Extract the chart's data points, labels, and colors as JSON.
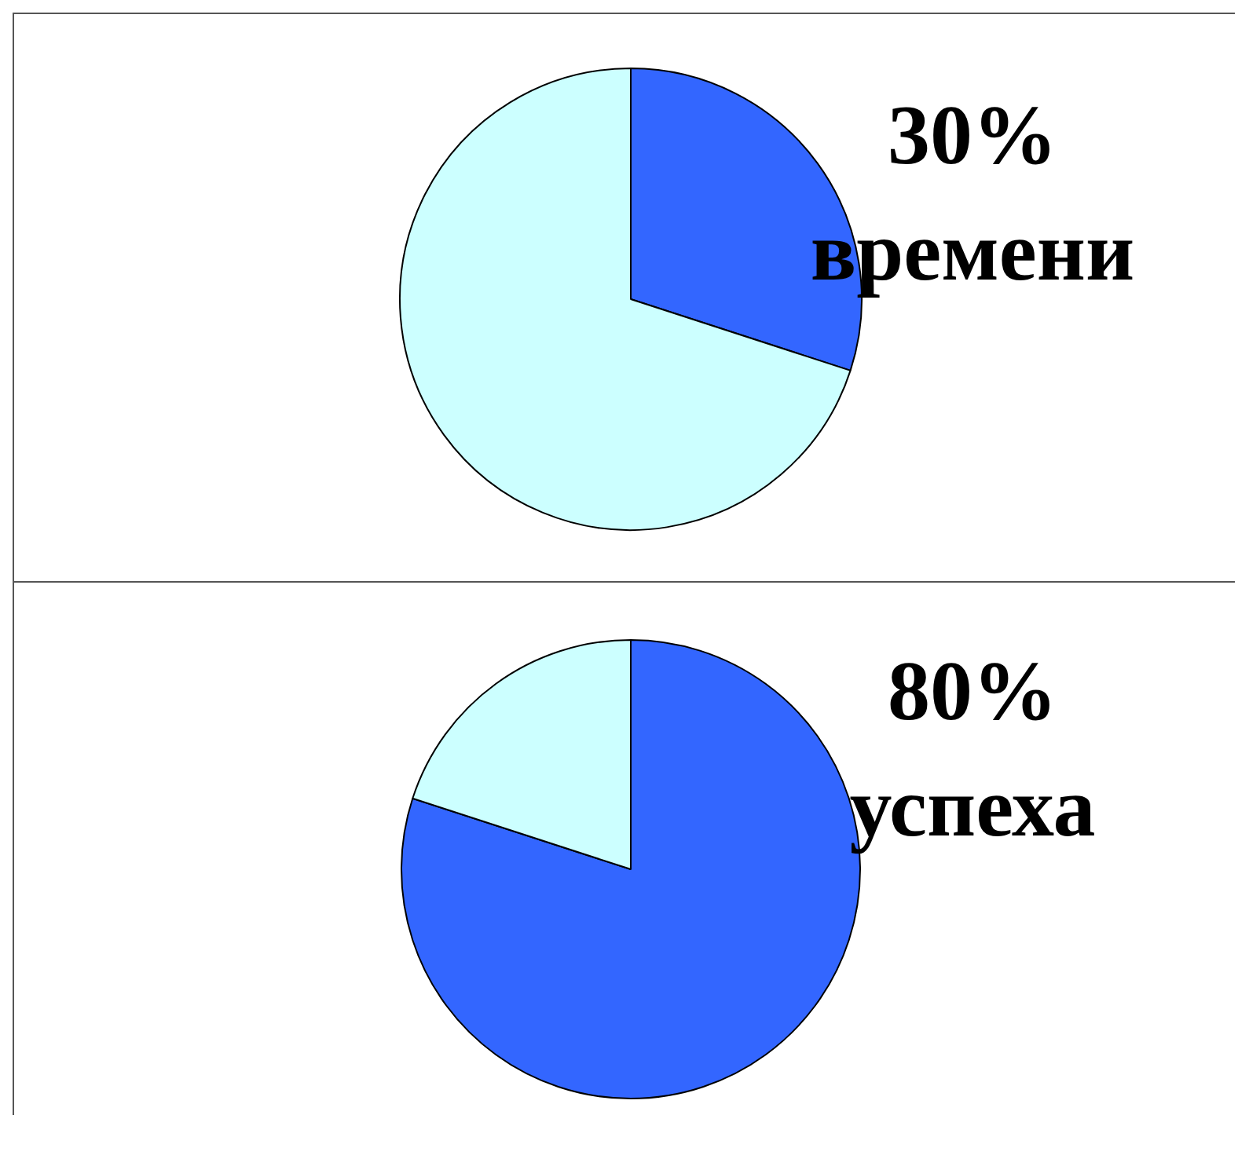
{
  "chart_data": [
    {
      "type": "pie",
      "categories": [
        null,
        null
      ],
      "values": [
        30,
        70
      ],
      "colors": [
        "#3366ff",
        "#ccffff"
      ],
      "value_labels": [
        "30%",
        null
      ],
      "annotations": [
        "времени"
      ]
    },
    {
      "type": "pie",
      "categories": [
        null,
        null
      ],
      "values": [
        80,
        20
      ],
      "colors": [
        "#3366ff",
        "#ccffff"
      ],
      "value_labels": [
        "80%",
        null
      ],
      "annotations": [
        "успеха"
      ]
    }
  ]
}
